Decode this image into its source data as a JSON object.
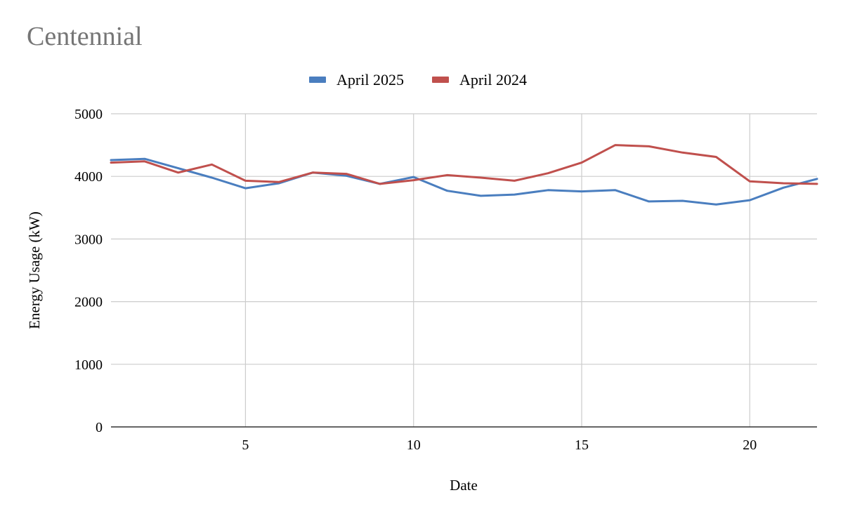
{
  "chart_data": {
    "type": "line",
    "title": "Centennial",
    "xlabel": "Date",
    "ylabel": "Energy Usage (kW)",
    "xlim": [
      1,
      22
    ],
    "ylim": [
      0,
      5000
    ],
    "x_ticks": [
      5,
      10,
      15,
      20
    ],
    "y_ticks": [
      0,
      1000,
      2000,
      3000,
      4000,
      5000
    ],
    "grid": true,
    "legend_position": "top",
    "x": [
      1,
      2,
      3,
      4,
      5,
      6,
      7,
      8,
      9,
      10,
      11,
      12,
      13,
      14,
      15,
      16,
      17,
      18,
      19,
      20,
      21,
      22
    ],
    "series": [
      {
        "name": "April 2025",
        "color": "#4A7EBF",
        "values": [
          4260,
          4280,
          4130,
          3980,
          3810,
          3890,
          4060,
          4010,
          3880,
          3990,
          3770,
          3690,
          3710,
          3780,
          3760,
          3780,
          3600,
          3610,
          3550,
          3620,
          3820,
          3960
        ]
      },
      {
        "name": "April 2024",
        "color": "#C0504D",
        "values": [
          4220,
          4240,
          4060,
          4190,
          3930,
          3910,
          4060,
          4040,
          3880,
          3940,
          4020,
          3980,
          3930,
          4050,
          4220,
          4500,
          4480,
          4380,
          4310,
          3920,
          3890,
          3880
        ]
      }
    ]
  }
}
